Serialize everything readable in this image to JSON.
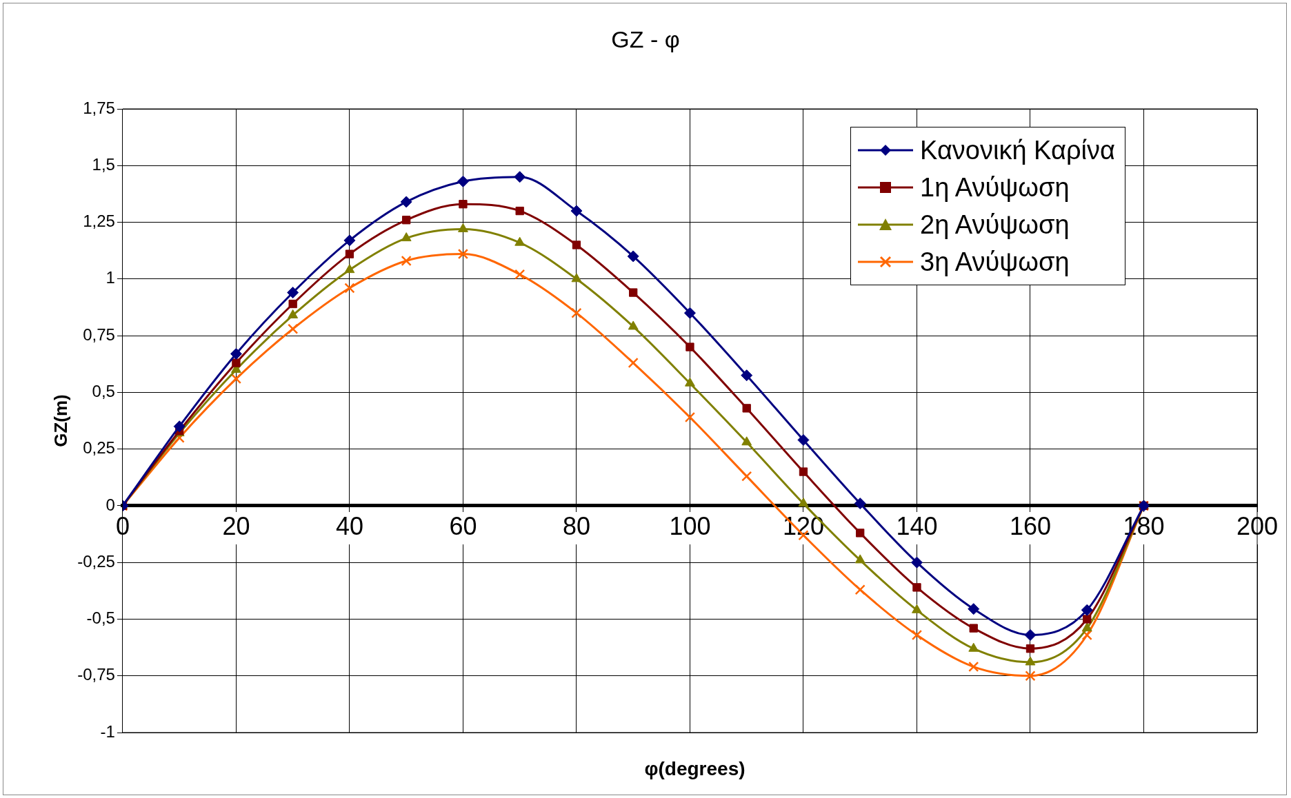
{
  "chart_data": {
    "type": "line",
    "title": "GZ - φ",
    "xlabel": "φ(degrees)",
    "ylabel": "GZ(m)",
    "x": [
      0,
      10,
      20,
      30,
      40,
      50,
      60,
      70,
      80,
      90,
      100,
      110,
      120,
      130,
      140,
      150,
      160,
      170,
      180
    ],
    "xlim": [
      0,
      200
    ],
    "xticks": [
      0,
      20,
      40,
      60,
      80,
      100,
      120,
      140,
      160,
      180,
      200
    ],
    "ylim": [
      -1,
      1.75
    ],
    "yticks": [
      {
        "value": -1,
        "label": "-1"
      },
      {
        "value": -0.75,
        "label": "-0,75"
      },
      {
        "value": -0.5,
        "label": "-0,5"
      },
      {
        "value": -0.25,
        "label": "-0,25"
      },
      {
        "value": 0,
        "label": "0"
      },
      {
        "value": 0.25,
        "label": "0,25"
      },
      {
        "value": 0.5,
        "label": "0,5"
      },
      {
        "value": 0.75,
        "label": "0,75"
      },
      {
        "value": 1,
        "label": "1"
      },
      {
        "value": 1.25,
        "label": "1,25"
      },
      {
        "value": 1.5,
        "label": "1,5"
      },
      {
        "value": 1.75,
        "label": "1,75"
      }
    ],
    "grid": true,
    "legend": "top right",
    "line_style": "solid",
    "series": [
      {
        "name": "Κανονική Καρίνα",
        "color": "#000080",
        "marker": "diamond",
        "values": [
          0,
          0.35,
          0.67,
          0.94,
          1.17,
          1.34,
          1.43,
          1.45,
          1.3,
          1.1,
          0.85,
          0.575,
          0.29,
          0.01,
          -0.25,
          -0.455,
          -0.57,
          -0.46,
          0
        ]
      },
      {
        "name": "1η Ανύψωση",
        "color": "#800000",
        "marker": "square",
        "values": [
          0,
          0.33,
          0.63,
          0.89,
          1.11,
          1.26,
          1.33,
          1.3,
          1.15,
          0.94,
          0.7,
          0.43,
          0.15,
          -0.12,
          -0.36,
          -0.54,
          -0.63,
          -0.5,
          0
        ]
      },
      {
        "name": "2η Ανύψωση",
        "color": "#808000",
        "marker": "triangle",
        "values": [
          0,
          0.32,
          0.6,
          0.84,
          1.04,
          1.18,
          1.22,
          1.16,
          1,
          0.79,
          0.54,
          0.28,
          0.01,
          -0.24,
          -0.46,
          -0.63,
          -0.69,
          -0.54,
          0
        ]
      },
      {
        "name": "3η Ανύψωση",
        "color": "#ff6600",
        "marker": "cross",
        "values": [
          0,
          0.3,
          0.56,
          0.78,
          0.96,
          1.08,
          1.11,
          1.02,
          0.85,
          0.63,
          0.39,
          0.13,
          -0.13,
          -0.37,
          -0.57,
          -0.71,
          -0.75,
          -0.57,
          0
        ]
      }
    ]
  }
}
